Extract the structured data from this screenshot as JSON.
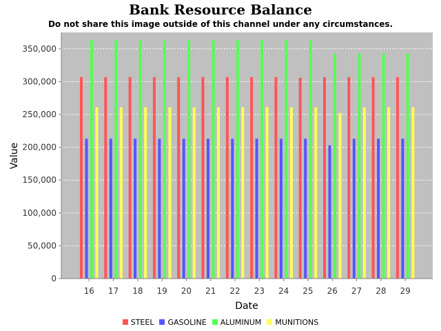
{
  "chart_data": {
    "type": "bar",
    "title": "Bank Resource Balance",
    "subtitle": "Do not share this image outside of this channel under any circumstances.",
    "xlabel": "Date",
    "ylabel": "Value",
    "ylim": [
      0,
      375000
    ],
    "yticks": [
      0,
      50000,
      100000,
      150000,
      200000,
      250000,
      300000,
      350000
    ],
    "ytick_labels": [
      "0",
      "50,000",
      "100,000",
      "150,000",
      "200,000",
      "250,000",
      "300,000",
      "350,000"
    ],
    "categories": [
      "16",
      "17",
      "18",
      "19",
      "20",
      "21",
      "22",
      "23",
      "24",
      "25",
      "26",
      "27",
      "28",
      "29"
    ],
    "grid": true,
    "legend_position": "bottom",
    "series": [
      {
        "name": "STEEL",
        "color": "#ff5555",
        "values": [
          307000,
          307000,
          307000,
          307000,
          307000,
          307000,
          307000,
          307000,
          307000,
          306000,
          307000,
          307000,
          307000,
          307000
        ]
      },
      {
        "name": "GASOLINE",
        "color": "#5555ff",
        "values": [
          213000,
          213000,
          213000,
          213000,
          213000,
          213000,
          213000,
          213000,
          213000,
          213000,
          203000,
          213000,
          213000,
          213000
        ]
      },
      {
        "name": "ALUMINUM",
        "color": "#55ff55",
        "values": [
          363000,
          363000,
          363000,
          363000,
          363000,
          363000,
          363000,
          363000,
          363000,
          363000,
          343000,
          343000,
          343000,
          343000
        ]
      },
      {
        "name": "MUNITIONS",
        "color": "#ffff55",
        "values": [
          261000,
          261000,
          261000,
          261000,
          261000,
          261000,
          261000,
          261000,
          261000,
          261000,
          252000,
          261000,
          261000,
          261000
        ]
      }
    ]
  }
}
